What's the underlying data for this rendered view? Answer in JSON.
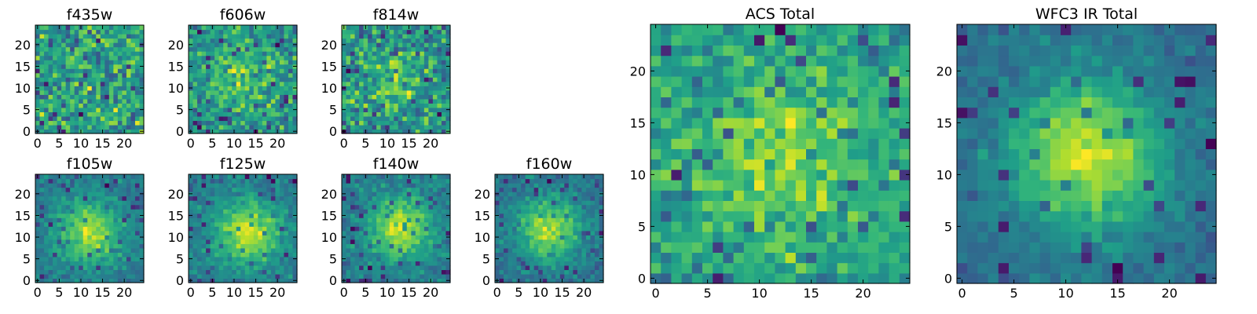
{
  "chart_data": [
    {
      "type": "heatmap",
      "title": "f435w",
      "pattern": "noise",
      "seed": 11,
      "center": [
        12,
        12
      ],
      "blob": 0.0,
      "sigma": 5,
      "xticks": [
        0,
        5,
        10,
        15,
        20
      ],
      "yticks": [
        0,
        5,
        10,
        15,
        20
      ],
      "grid_size": 25,
      "colormap": "viridis"
    },
    {
      "type": "heatmap",
      "title": "f606w",
      "pattern": "noise",
      "seed": 23,
      "center": [
        12,
        12
      ],
      "blob": 0.25,
      "sigma": 5,
      "xticks": [
        0,
        5,
        10,
        15,
        20
      ],
      "yticks": [
        0,
        5,
        10,
        15,
        20
      ],
      "grid_size": 25,
      "colormap": "viridis"
    },
    {
      "type": "heatmap",
      "title": "f814w",
      "pattern": "noise",
      "seed": 37,
      "center": [
        12,
        12
      ],
      "blob": 0.2,
      "sigma": 5,
      "xticks": [
        0,
        5,
        10,
        15,
        20
      ],
      "yticks": [
        0,
        5,
        10,
        15,
        20
      ],
      "grid_size": 25,
      "colormap": "viridis"
    },
    {
      "type": "heatmap",
      "title": "f105w",
      "pattern": "blob",
      "seed": 41,
      "center": [
        12,
        11
      ],
      "blob": 0.55,
      "sigma": 5,
      "xticks": [
        0,
        5,
        10,
        15,
        20
      ],
      "yticks": [
        0,
        5,
        10,
        15,
        20
      ],
      "grid_size": 25,
      "colormap": "viridis"
    },
    {
      "type": "heatmap",
      "title": "f125w",
      "pattern": "blob",
      "seed": 53,
      "center": [
        13,
        11
      ],
      "blob": 0.55,
      "sigma": 5,
      "xticks": [
        0,
        5,
        10,
        15,
        20
      ],
      "yticks": [
        0,
        5,
        10,
        15,
        20
      ],
      "grid_size": 25,
      "colormap": "viridis"
    },
    {
      "type": "heatmap",
      "title": "f140w",
      "pattern": "blob",
      "seed": 67,
      "center": [
        13,
        12
      ],
      "blob": 0.55,
      "sigma": 5,
      "xticks": [
        0,
        5,
        10,
        15,
        20
      ],
      "yticks": [
        0,
        5,
        10,
        15,
        20
      ],
      "grid_size": 25,
      "colormap": "viridis"
    },
    {
      "type": "heatmap",
      "title": "f160w",
      "pattern": "blob",
      "seed": 79,
      "center": [
        12,
        12
      ],
      "blob": 0.55,
      "sigma": 5,
      "xticks": [
        0,
        5,
        10,
        15,
        20
      ],
      "yticks": [
        0,
        5,
        10,
        15,
        20
      ],
      "grid_size": 25,
      "colormap": "viridis"
    },
    {
      "type": "heatmap",
      "title": "ACS Total",
      "pattern": "noise",
      "seed": 97,
      "center": [
        12,
        12
      ],
      "blob": 0.3,
      "sigma": 6,
      "xticks": [
        0,
        5,
        10,
        15,
        20
      ],
      "yticks": [
        0,
        5,
        10,
        15,
        20
      ],
      "grid_size": 25,
      "colormap": "viridis"
    },
    {
      "type": "heatmap",
      "title": "WFC3 IR Total",
      "pattern": "blob",
      "seed": 113,
      "center": [
        12,
        12
      ],
      "blob": 0.65,
      "sigma": 5,
      "xticks": [
        0,
        5,
        10,
        15,
        20
      ],
      "yticks": [
        0,
        5,
        10,
        15,
        20
      ],
      "grid_size": 25,
      "colormap": "viridis"
    }
  ]
}
